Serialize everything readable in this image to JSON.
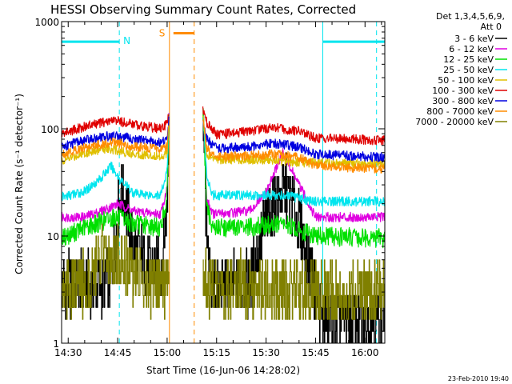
{
  "chart_data": {
    "type": "line",
    "title": "HESSI Observing Summary Count Rates, Corrected",
    "xlabel": "Start Time (16-Jun-06 14:28:02)",
    "ylabel": "Corrected Count Rate (s⁻¹ detector⁻¹)",
    "y_scale": "log",
    "ylim": [
      1,
      1000
    ],
    "xlim_minutes": [
      0,
      98
    ],
    "x_tick_labels": [
      "14:30",
      "14:45",
      "15:00",
      "15:15",
      "15:30",
      "15:45",
      "16:00"
    ],
    "y_tick_labels": [
      "1",
      "10",
      "100",
      "1000"
    ],
    "legend_header": [
      "Det 1,3,4,5,6,9,",
      "Att 0"
    ],
    "legend_position": "right",
    "timestamp": "23-Feb-2010 19:40",
    "annotations": [
      {
        "label": "N",
        "meaning": "night intervals",
        "color": "#00e5ee"
      },
      {
        "label": "S",
        "meaning": "SAA interval",
        "color": "#ff8c00"
      }
    ],
    "series": [
      {
        "name": "3 - 6 keV",
        "color": "#000000",
        "points": [
          [
            "14:28",
            3.5
          ],
          [
            "14:40",
            3.5
          ],
          [
            "14:43",
            4.0
          ],
          [
            "14:46",
            30
          ],
          [
            "14:50",
            8
          ],
          [
            "14:55",
            5
          ],
          [
            "14:58",
            4.5
          ],
          [
            "15:00",
            20
          ],
          [
            "15:00.5",
            130
          ],
          [
            "15:11",
            130
          ],
          [
            "15:12",
            8
          ],
          [
            "15:13",
            3.5
          ],
          [
            "15:25",
            3.5
          ],
          [
            "15:30",
            15
          ],
          [
            "15:36",
            28
          ],
          [
            "15:40",
            13
          ],
          [
            "15:45",
            3
          ],
          [
            "15:47",
            1.6
          ],
          [
            "16:06",
            1.6
          ]
        ]
      },
      {
        "name": "6 - 12 keV",
        "color": "#e000e0",
        "points": [
          [
            "14:28",
            15
          ],
          [
            "14:35",
            15
          ],
          [
            "14:42",
            18
          ],
          [
            "14:45",
            20
          ],
          [
            "14:50",
            17
          ],
          [
            "14:58",
            16
          ],
          [
            "15:00",
            28
          ],
          [
            "15:00.5",
            130
          ],
          [
            "15:11",
            130
          ],
          [
            "15:12",
            22
          ],
          [
            "15:14",
            16
          ],
          [
            "15:25",
            17
          ],
          [
            "15:30",
            25
          ],
          [
            "15:35",
            60
          ],
          [
            "15:40",
            30
          ],
          [
            "15:45",
            15
          ],
          [
            "16:06",
            15
          ]
        ]
      },
      {
        "name": "12 - 25 keV",
        "color": "#00e000",
        "points": [
          [
            "14:28",
            9.5
          ],
          [
            "14:35",
            12
          ],
          [
            "14:44",
            15
          ],
          [
            "14:50",
            13
          ],
          [
            "14:58",
            12
          ],
          [
            "15:00",
            22
          ],
          [
            "15:00.5",
            130
          ],
          [
            "15:11",
            130
          ],
          [
            "15:12",
            18
          ],
          [
            "15:14",
            12
          ],
          [
            "15:25",
            12
          ],
          [
            "15:35",
            13
          ],
          [
            "15:45",
            10
          ],
          [
            "16:06",
            9.5
          ]
        ]
      },
      {
        "name": "25 - 50 keV",
        "color": "#00e5ee",
        "points": [
          [
            "14:28",
            23
          ],
          [
            "14:35",
            26
          ],
          [
            "14:40",
            35
          ],
          [
            "14:43",
            45
          ],
          [
            "14:46",
            33
          ],
          [
            "14:50",
            25
          ],
          [
            "14:58",
            24
          ],
          [
            "15:00",
            40
          ],
          [
            "15:00.5",
            130
          ],
          [
            "15:11",
            130
          ],
          [
            "15:12",
            35
          ],
          [
            "15:14",
            24
          ],
          [
            "15:25",
            24
          ],
          [
            "15:35",
            24
          ],
          [
            "15:45",
            21
          ],
          [
            "16:06",
            21
          ]
        ]
      },
      {
        "name": "50 - 100 keV",
        "color": "#e0c000",
        "points": [
          [
            "14:28",
            50
          ],
          [
            "14:35",
            60
          ],
          [
            "14:42",
            66
          ],
          [
            "14:48",
            60
          ],
          [
            "14:58",
            55
          ],
          [
            "15:00",
            60
          ],
          [
            "15:00.5",
            130
          ],
          [
            "15:11",
            130
          ],
          [
            "15:12",
            55
          ],
          [
            "15:15",
            52
          ],
          [
            "15:25",
            52
          ],
          [
            "15:35",
            50
          ],
          [
            "15:45",
            48
          ],
          [
            "16:06",
            47
          ]
        ]
      },
      {
        "name": "100 - 300 keV",
        "color": "#e00000",
        "points": [
          [
            "14:28",
            90
          ],
          [
            "14:35",
            105
          ],
          [
            "14:44",
            120
          ],
          [
            "14:50",
            110
          ],
          [
            "14:58",
            100
          ],
          [
            "15:00",
            110
          ],
          [
            "15:00.5",
            150
          ],
          [
            "15:11",
            150
          ],
          [
            "15:12",
            115
          ],
          [
            "15:15",
            88
          ],
          [
            "15:25",
            95
          ],
          [
            "15:32",
            103
          ],
          [
            "15:40",
            95
          ],
          [
            "15:45",
            82
          ],
          [
            "16:06",
            78
          ]
        ]
      },
      {
        "name": "300 - 800 keV",
        "color": "#0000e0",
        "points": [
          [
            "14:28",
            68
          ],
          [
            "14:35",
            78
          ],
          [
            "14:44",
            87
          ],
          [
            "14:50",
            80
          ],
          [
            "14:58",
            75
          ],
          [
            "15:00",
            80
          ],
          [
            "15:00.5",
            120
          ],
          [
            "15:11",
            120
          ],
          [
            "15:12",
            80
          ],
          [
            "15:15",
            65
          ],
          [
            "15:25",
            68
          ],
          [
            "15:32",
            73
          ],
          [
            "15:40",
            68
          ],
          [
            "15:45",
            58
          ],
          [
            "16:06",
            54
          ]
        ]
      },
      {
        "name": "800 - 7000 keV",
        "color": "#ff8c00",
        "points": [
          [
            "14:28",
            58
          ],
          [
            "14:35",
            67
          ],
          [
            "14:44",
            75
          ],
          [
            "14:50",
            68
          ],
          [
            "14:58",
            65
          ],
          [
            "15:00",
            68
          ],
          [
            "15:00.5",
            110
          ],
          [
            "15:11",
            110
          ],
          [
            "15:12",
            66
          ],
          [
            "15:15",
            54
          ],
          [
            "15:25",
            56
          ],
          [
            "15:32",
            58
          ],
          [
            "15:40",
            54
          ],
          [
            "15:45",
            45
          ],
          [
            "16:06",
            42
          ]
        ]
      },
      {
        "name": "7000 - 20000 keV",
        "color": "#808000",
        "points": [
          [
            "14:28",
            3.5
          ],
          [
            "14:35",
            3.5
          ],
          [
            "14:38",
            4.5
          ],
          [
            "14:40",
            6
          ],
          [
            "14:45",
            6.5
          ],
          [
            "14:48",
            5
          ],
          [
            "14:55",
            3.5
          ],
          [
            "14:58",
            3.5
          ],
          [
            "15:13",
            3.5
          ],
          [
            "15:25",
            3.5
          ],
          [
            "15:35",
            3.2
          ],
          [
            "15:45",
            3.0
          ],
          [
            "16:06",
            3.0
          ]
        ]
      }
    ]
  }
}
